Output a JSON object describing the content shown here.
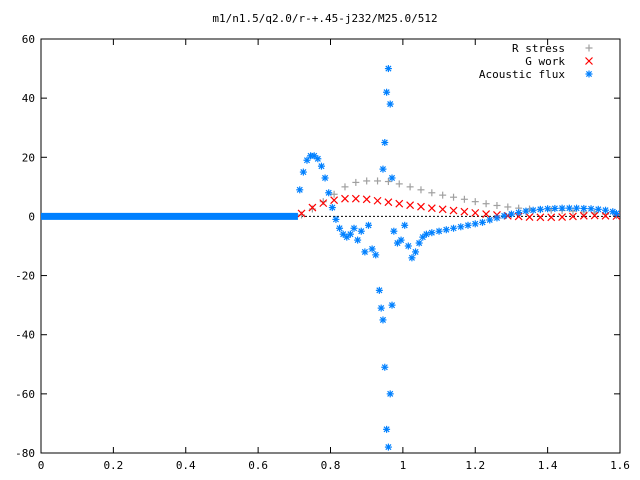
{
  "chart_data": {
    "type": "scatter",
    "title": "m1/n1.5/q2.0/r-+.45-j232/M25.0/512",
    "xlabel": "",
    "ylabel": "",
    "xlim": [
      0,
      1.6
    ],
    "ylim": [
      -80,
      60
    ],
    "x_ticks": [
      "0",
      "0.2",
      "0.4",
      "0.6",
      "0.8",
      "1",
      "1.2",
      "1.4",
      "1.6"
    ],
    "y_ticks": [
      "60",
      "40",
      "20",
      "0",
      "-20",
      "-40",
      "-60",
      "-80"
    ],
    "grid": false,
    "legend_position": "top-right",
    "series": [
      {
        "name": "R stress",
        "marker": "plus",
        "color": "#a0a0a0",
        "points": [
          [
            0.72,
            0.5
          ],
          [
            0.75,
            2.5
          ],
          [
            0.78,
            5.0
          ],
          [
            0.81,
            7.5
          ],
          [
            0.84,
            10.0
          ],
          [
            0.87,
            11.5
          ],
          [
            0.9,
            12.0
          ],
          [
            0.93,
            12.0
          ],
          [
            0.96,
            11.8
          ],
          [
            0.99,
            11.0
          ],
          [
            1.02,
            10.0
          ],
          [
            1.05,
            9.0
          ],
          [
            1.08,
            8.0
          ],
          [
            1.11,
            7.2
          ],
          [
            1.14,
            6.5
          ],
          [
            1.17,
            5.8
          ],
          [
            1.2,
            5.0
          ],
          [
            1.23,
            4.3
          ],
          [
            1.26,
            3.7
          ],
          [
            1.29,
            3.2
          ],
          [
            1.32,
            2.8
          ],
          [
            1.35,
            2.5
          ],
          [
            1.38,
            2.3
          ],
          [
            1.41,
            2.1
          ],
          [
            1.44,
            2.0
          ],
          [
            1.47,
            1.8
          ],
          [
            1.5,
            1.5
          ],
          [
            1.53,
            1.2
          ],
          [
            1.56,
            0.8
          ],
          [
            1.59,
            0.3
          ]
        ]
      },
      {
        "name": "G work",
        "marker": "cross",
        "color": "#ff0000",
        "points": [
          [
            0.72,
            1.0
          ],
          [
            0.75,
            3.0
          ],
          [
            0.78,
            4.5
          ],
          [
            0.81,
            5.5
          ],
          [
            0.84,
            6.0
          ],
          [
            0.87,
            6.0
          ],
          [
            0.9,
            5.8
          ],
          [
            0.93,
            5.3
          ],
          [
            0.96,
            4.8
          ],
          [
            0.99,
            4.3
          ],
          [
            1.02,
            3.8
          ],
          [
            1.05,
            3.3
          ],
          [
            1.08,
            2.8
          ],
          [
            1.11,
            2.4
          ],
          [
            1.14,
            2.0
          ],
          [
            1.17,
            1.6
          ],
          [
            1.2,
            1.2
          ],
          [
            1.23,
            0.8
          ],
          [
            1.26,
            0.5
          ],
          [
            1.29,
            0.2
          ],
          [
            1.32,
            0.0
          ],
          [
            1.35,
            -0.2
          ],
          [
            1.38,
            -0.3
          ],
          [
            1.41,
            -0.3
          ],
          [
            1.44,
            -0.2
          ],
          [
            1.47,
            0.0
          ],
          [
            1.5,
            0.2
          ],
          [
            1.53,
            0.3
          ],
          [
            1.56,
            0.2
          ],
          [
            1.59,
            0.1
          ]
        ]
      },
      {
        "name": "Acoustic flux",
        "marker": "star",
        "color": "#0080ff",
        "points": [
          [
            0.715,
            9.0
          ],
          [
            0.725,
            15.0
          ],
          [
            0.735,
            19.0
          ],
          [
            0.745,
            20.5
          ],
          [
            0.755,
            20.5
          ],
          [
            0.765,
            19.5
          ],
          [
            0.775,
            17.0
          ],
          [
            0.785,
            13.0
          ],
          [
            0.795,
            8.0
          ],
          [
            0.805,
            3.0
          ],
          [
            0.815,
            -1.0
          ],
          [
            0.825,
            -4.0
          ],
          [
            0.835,
            -6.0
          ],
          [
            0.845,
            -7.0
          ],
          [
            0.855,
            -6.0
          ],
          [
            0.865,
            -4.0
          ],
          [
            0.875,
            -8.0
          ],
          [
            0.885,
            -5.0
          ],
          [
            0.895,
            -12.0
          ],
          [
            0.905,
            -3.0
          ],
          [
            0.915,
            -11.0
          ],
          [
            0.925,
            -13.0
          ],
          [
            0.935,
            -25.0
          ],
          [
            0.94,
            -31.0
          ],
          [
            0.945,
            -35.0
          ],
          [
            0.95,
            -51.0
          ],
          [
            0.955,
            -72.0
          ],
          [
            0.96,
            -78.0
          ],
          [
            0.965,
            -60.0
          ],
          [
            0.97,
            -30.0
          ],
          [
            0.945,
            16.0
          ],
          [
            0.95,
            25.0
          ],
          [
            0.955,
            42.0
          ],
          [
            0.96,
            50.0
          ],
          [
            0.965,
            38.0
          ],
          [
            0.97,
            13.0
          ],
          [
            0.975,
            -5.0
          ],
          [
            0.985,
            -9.0
          ],
          [
            0.995,
            -8.0
          ],
          [
            1.005,
            -3.0
          ],
          [
            1.015,
            -10.0
          ],
          [
            1.025,
            -14.0
          ],
          [
            1.035,
            -12.0
          ],
          [
            1.045,
            -9.0
          ],
          [
            1.055,
            -7.0
          ],
          [
            1.065,
            -6.0
          ],
          [
            1.08,
            -5.5
          ],
          [
            1.1,
            -5.0
          ],
          [
            1.12,
            -4.5
          ],
          [
            1.14,
            -4.0
          ],
          [
            1.16,
            -3.5
          ],
          [
            1.18,
            -3.0
          ],
          [
            1.2,
            -2.5
          ],
          [
            1.22,
            -2.0
          ],
          [
            1.24,
            -1.2
          ],
          [
            1.26,
            -0.5
          ],
          [
            1.28,
            0.2
          ],
          [
            1.3,
            0.8
          ],
          [
            1.32,
            1.3
          ],
          [
            1.34,
            1.8
          ],
          [
            1.36,
            2.1
          ],
          [
            1.38,
            2.4
          ],
          [
            1.4,
            2.6
          ],
          [
            1.42,
            2.7
          ],
          [
            1.44,
            2.8
          ],
          [
            1.46,
            2.8
          ],
          [
            1.48,
            2.8
          ],
          [
            1.5,
            2.7
          ],
          [
            1.52,
            2.6
          ],
          [
            1.54,
            2.4
          ],
          [
            1.56,
            2.1
          ],
          [
            1.58,
            1.6
          ],
          [
            1.59,
            1.0
          ]
        ],
        "flat_zero_range": [
          0.0,
          0.71
        ]
      }
    ]
  }
}
